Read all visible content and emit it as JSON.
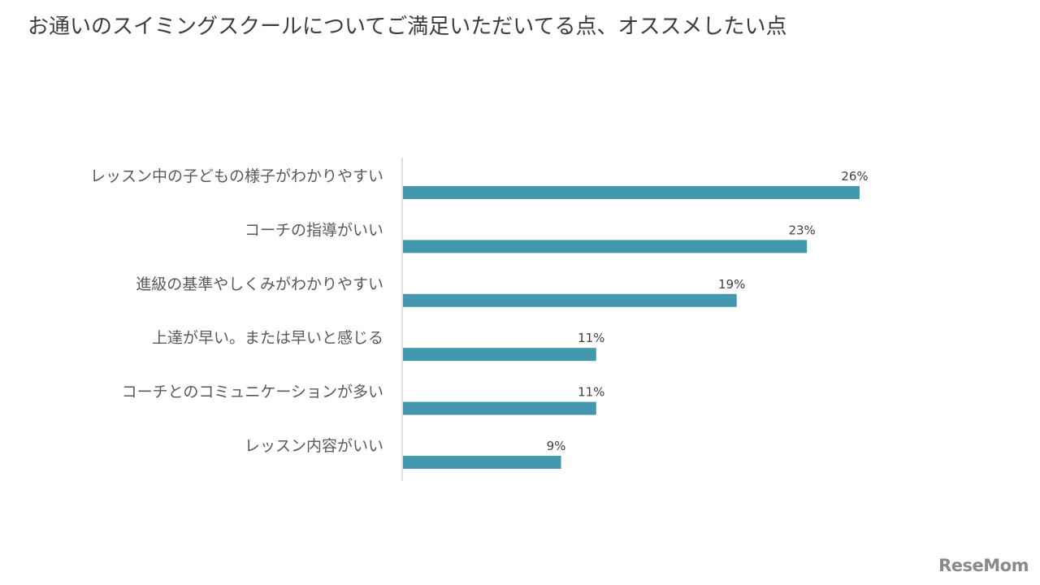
{
  "title": "お通いのスイミングスクールについてご満足いただいてる点、オススメしたい点",
  "logo": {
    "text": "ReseMom"
  },
  "colors": {
    "bar": "#4397ae",
    "axis": "#bfbfbf"
  },
  "chart_data": {
    "type": "bar",
    "orientation": "horizontal",
    "categories": [
      "レッスン中の子どもの様子がわかりやすい",
      "コーチの指導がいい",
      "進級の基準やしくみがわかりやすい",
      "上達が早い。または早いと感じる",
      "コーチとのコミュニケーションが多い",
      "レッスン内容がいい"
    ],
    "values": [
      26,
      23,
      19,
      11,
      11,
      9
    ],
    "value_labels": [
      "26%",
      "23%",
      "19%",
      "11%",
      "11%",
      "9%"
    ],
    "unit": "%",
    "xlim": [
      0,
      30
    ],
    "grid": false,
    "legend": "none"
  }
}
